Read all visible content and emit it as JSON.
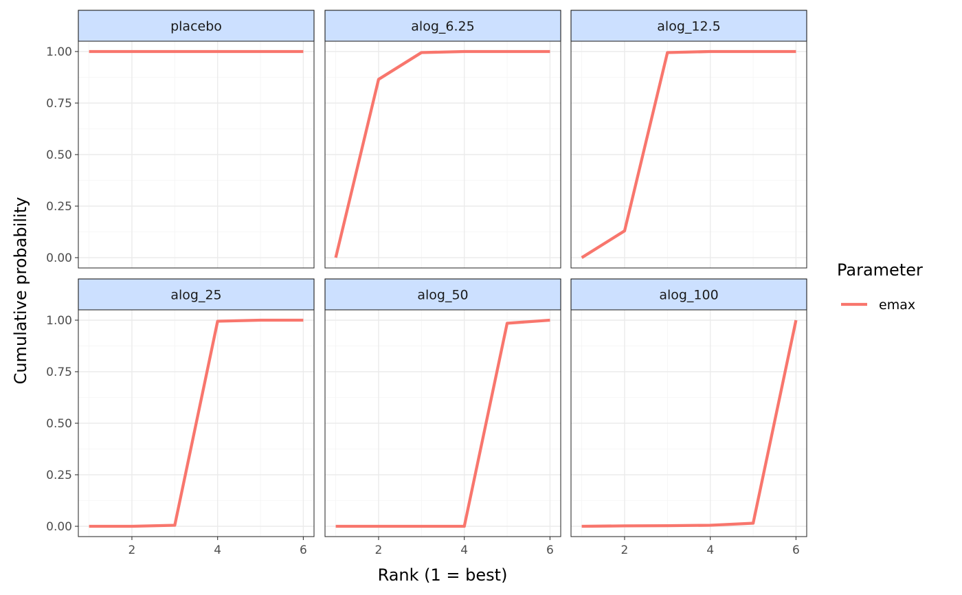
{
  "chart_data": {
    "type": "line",
    "xlabel": "Rank (1 = best)",
    "ylabel": "Cumulative probability",
    "xlim": [
      0.75,
      6.25
    ],
    "ylim": [
      -0.05,
      1.05
    ],
    "x_ticks": [
      2,
      4,
      6
    ],
    "y_ticks": [
      0.0,
      0.25,
      0.5,
      0.75,
      1.0
    ],
    "y_tick_labels": [
      "0.00",
      "0.25",
      "0.50",
      "0.75",
      "1.00"
    ],
    "x_tick_labels": [
      "2",
      "4",
      "6"
    ],
    "grid": true,
    "legend": {
      "title": "Parameter",
      "position": "right",
      "entries": [
        {
          "label": "emax",
          "color": "#f8766d"
        }
      ]
    },
    "x": [
      1,
      2,
      3,
      4,
      5,
      6
    ],
    "panels": [
      {
        "name": "placebo",
        "series": [
          {
            "name": "emax",
            "values": [
              1.0,
              1.0,
              1.0,
              1.0,
              1.0,
              1.0
            ]
          }
        ]
      },
      {
        "name": "alog_6.25",
        "series": [
          {
            "name": "emax",
            "values": [
              0.0,
              0.865,
              0.995,
              1.0,
              1.0,
              1.0
            ]
          }
        ]
      },
      {
        "name": "alog_12.5",
        "series": [
          {
            "name": "emax",
            "values": [
              0.0,
              0.13,
              0.995,
              1.0,
              1.0,
              1.0
            ]
          }
        ]
      },
      {
        "name": "alog_25",
        "series": [
          {
            "name": "emax",
            "values": [
              0.0,
              0.0,
              0.005,
              0.995,
              1.0,
              1.0
            ]
          }
        ]
      },
      {
        "name": "alog_50",
        "series": [
          {
            "name": "emax",
            "values": [
              0.0,
              0.0,
              0.0,
              0.0,
              0.985,
              1.0
            ]
          }
        ]
      },
      {
        "name": "alog_100",
        "series": [
          {
            "name": "emax",
            "values": [
              0.0,
              0.002,
              0.003,
              0.005,
              0.015,
              1.0
            ]
          }
        ]
      }
    ]
  }
}
